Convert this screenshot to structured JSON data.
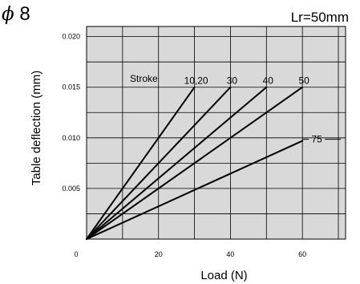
{
  "header": {
    "title_symbol": "ϕ",
    "title_value": "8",
    "condition": "Lr=50mm"
  },
  "chart_data": {
    "type": "line",
    "title": "ϕ 8",
    "annotation": "Lr=50mm",
    "xlabel": "Load (N)",
    "ylabel": "Table deflection (mm)",
    "xlim": [
      0,
      72
    ],
    "ylim": [
      0,
      0.021
    ],
    "x_ticks": [
      0,
      20,
      40,
      60
    ],
    "x_tick_labels": [
      "0",
      "20",
      "40",
      "60"
    ],
    "y_ticks": [
      0.005,
      0.01,
      0.015,
      0.02
    ],
    "y_tick_labels": [
      "0.005",
      "0.010",
      "0.015",
      "0.020"
    ],
    "grid": true,
    "legend_title": "Stroke",
    "series": [
      {
        "name": "10,20",
        "x": [
          0,
          30
        ],
        "y": [
          0,
          0.015
        ]
      },
      {
        "name": "30",
        "x": [
          0,
          40
        ],
        "y": [
          0,
          0.015
        ]
      },
      {
        "name": "40",
        "x": [
          0,
          50
        ],
        "y": [
          0,
          0.015
        ]
      },
      {
        "name": "50",
        "x": [
          0,
          60
        ],
        "y": [
          0,
          0.015
        ]
      },
      {
        "name": "75",
        "x": [
          0,
          60
        ],
        "y": [
          0,
          0.0097
        ]
      }
    ],
    "colors": {
      "plot_bg": "#d9d9d9",
      "grid": "#000000",
      "line": "#000000"
    }
  }
}
